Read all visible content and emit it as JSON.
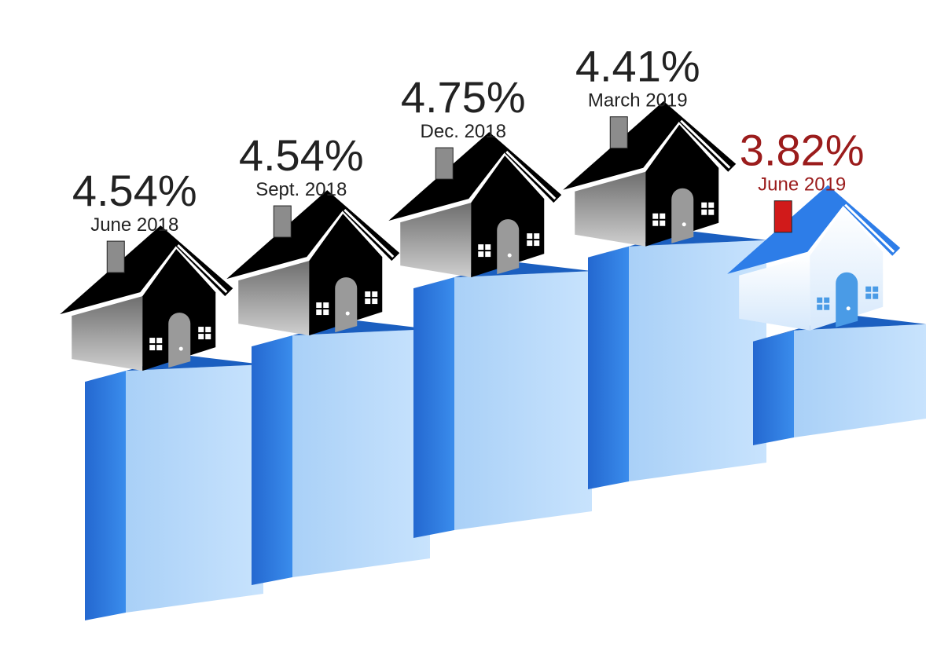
{
  "chart_data": {
    "type": "bar",
    "categories": [
      "June 2018",
      "Sept. 2018",
      "Dec. 2018",
      "March 2019",
      "June 2019"
    ],
    "values": [
      4.54,
      4.54,
      4.75,
      4.41,
      3.82
    ],
    "value_labels": [
      "4.54%",
      "4.54%",
      "4.75%",
      "4.41%",
      "3.82%"
    ],
    "unit": "%",
    "highlight_index": 4,
    "colors": {
      "bar_front": "#bcdcfb",
      "bar_side": "#2f7fe0",
      "bar_top": "#1b5fc0",
      "house_roof": "#000000",
      "house_wall": "#9a9a9a",
      "highlight_roof": "#2d7de8",
      "highlight_wall": "#eef4fb",
      "highlight_chimney": "#d11a1a",
      "label_text": "#222222",
      "highlight_text": "#9b1c1c"
    }
  }
}
